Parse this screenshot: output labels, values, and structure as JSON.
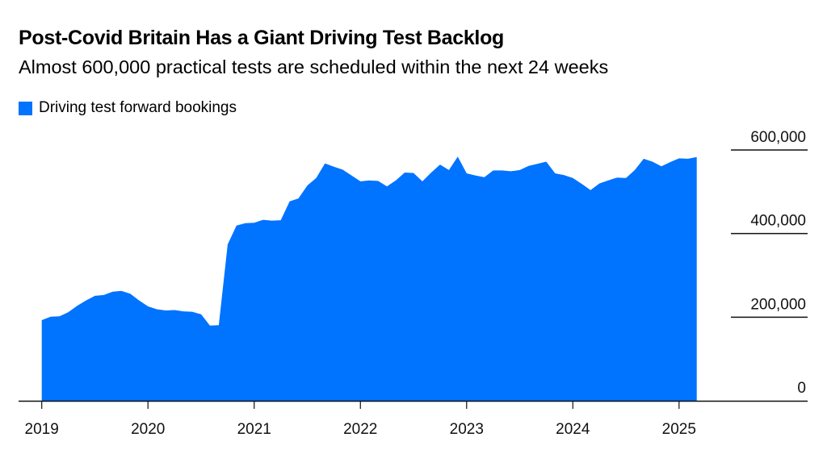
{
  "chart_data": {
    "type": "area",
    "title": "Post-Covid Britain Has a Giant Driving Test Backlog",
    "subtitle": "Almost 600,000 practical tests are scheduled within the next 24 weeks",
    "xlabel": "",
    "ylabel": "",
    "ylim": [
      0,
      600000
    ],
    "yticks": [
      0,
      200000,
      400000,
      600000
    ],
    "ytick_labels": [
      "0",
      "200,000",
      "400,000",
      "600,000"
    ],
    "xtick_labels": [
      "2019",
      "2020",
      "2021",
      "2022",
      "2023",
      "2024",
      "2025"
    ],
    "y_axis_position": "right",
    "grid": "partial horizontal lines at y-axis labels",
    "legend_position": "top-left",
    "color": "#0073FF",
    "x_start": "2019-01",
    "x_frequency": "monthly",
    "series": [
      {
        "name": "Driving test forward bookings",
        "values": [
          193000,
          201000,
          202000,
          212000,
          227000,
          240000,
          251000,
          253000,
          261000,
          263000,
          256000,
          240000,
          226000,
          219000,
          216000,
          217000,
          214000,
          213000,
          207000,
          180000,
          181000,
          374000,
          419000,
          425000,
          426000,
          433000,
          431000,
          432000,
          477000,
          484000,
          515000,
          533000,
          568000,
          560000,
          553000,
          539000,
          525000,
          527000,
          526000,
          513000,
          527000,
          546000,
          545000,
          525000,
          546000,
          565000,
          552000,
          584000,
          544000,
          539000,
          535000,
          551000,
          551000,
          549000,
          552000,
          562000,
          567000,
          572000,
          544000,
          540000,
          533000,
          519000,
          504000,
          520000,
          527000,
          534000,
          533000,
          552000,
          579000,
          572000,
          561000,
          571000,
          580000,
          579000,
          583000
        ]
      }
    ]
  }
}
